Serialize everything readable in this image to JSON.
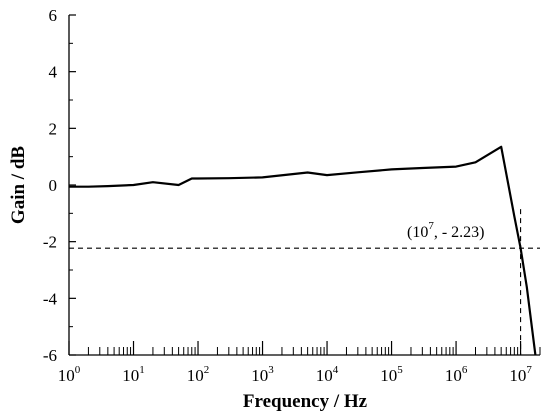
{
  "chart_data": {
    "type": "line",
    "xlabel": "Frequency / Hz",
    "ylabel": "Gain / dB",
    "x_scale": "log",
    "xlim": [
      1,
      20000000
    ],
    "ylim": [
      -6,
      6
    ],
    "x_ticks": [
      {
        "base": "10",
        "exp": "0",
        "value": 1
      },
      {
        "base": "10",
        "exp": "1",
        "value": 10
      },
      {
        "base": "10",
        "exp": "2",
        "value": 100
      },
      {
        "base": "10",
        "exp": "3",
        "value": 1000
      },
      {
        "base": "10",
        "exp": "4",
        "value": 10000
      },
      {
        "base": "10",
        "exp": "5",
        "value": 100000
      },
      {
        "base": "10",
        "exp": "6",
        "value": 1000000
      },
      {
        "base": "10",
        "exp": "7",
        "value": 10000000
      }
    ],
    "y_ticks": [
      {
        "label": "6",
        "value": 6
      },
      {
        "label": "4",
        "value": 4
      },
      {
        "label": "2",
        "value": 2
      },
      {
        "label": "0",
        "value": 0
      },
      {
        "label": "-2",
        "value": -2
      },
      {
        "label": "-4",
        "value": -4
      },
      {
        "label": "-6",
        "value": -6
      }
    ],
    "grid": false,
    "series": [
      {
        "x": [
          1,
          2,
          4,
          10,
          20,
          50,
          80,
          100,
          300,
          1000,
          5000,
          10000,
          30000,
          100000,
          300000,
          1000000,
          2000000,
          5000000,
          8000000,
          10000000,
          12500000,
          17000000
        ],
        "y": [
          -0.06,
          -0.06,
          -0.04,
          0.0,
          0.1,
          0.0,
          0.23,
          0.23,
          0.24,
          0.27,
          0.44,
          0.35,
          0.45,
          0.55,
          0.6,
          0.65,
          0.8,
          1.35,
          -1.1,
          -2.23,
          -3.6,
          -6.0
        ]
      }
    ],
    "annotation": {
      "base": "(10",
      "exp": "7",
      "rest": ", - 2.23)",
      "x": 10000000,
      "y": -2.23
    }
  }
}
